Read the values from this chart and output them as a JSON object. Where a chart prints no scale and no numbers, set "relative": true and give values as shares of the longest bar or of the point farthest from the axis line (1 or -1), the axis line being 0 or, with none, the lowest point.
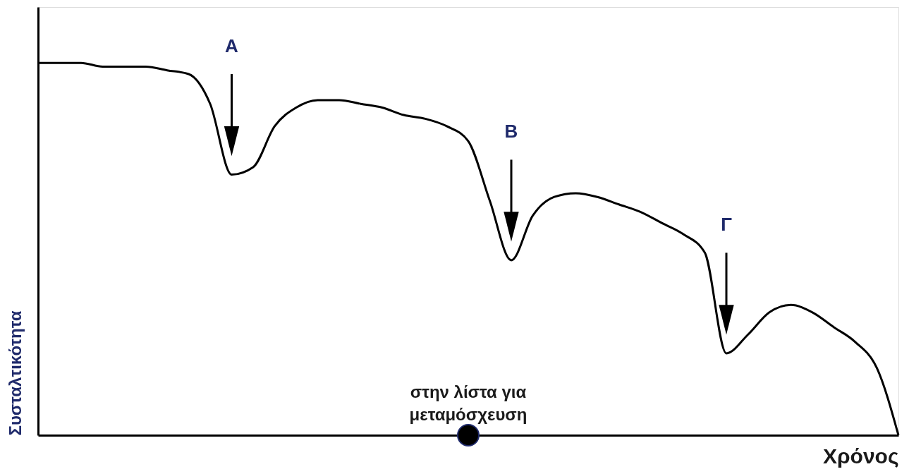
{
  "chart_data": {
    "type": "line",
    "relative": true,
    "xlabel": "Χρόνος",
    "ylabel": "Συσταλτικότητα",
    "categories": [
      null,
      null,
      null,
      null,
      null,
      null,
      null,
      null,
      null,
      null,
      null,
      null,
      null,
      null,
      null,
      null,
      null,
      null,
      null,
      null,
      null,
      null,
      null,
      null,
      null,
      null,
      null,
      null,
      null,
      null,
      null,
      null,
      null,
      null,
      null,
      null,
      null,
      null,
      null,
      null,
      null
    ],
    "series": [
      {
        "color": "#000000",
        "values": [
          1.0,
          1.0,
          1.0,
          0.99,
          0.99,
          0.99,
          0.98,
          0.97,
          0.89,
          0.7,
          0.72,
          0.83,
          0.88,
          0.9,
          0.9,
          0.89,
          0.88,
          0.86,
          0.85,
          0.83,
          0.79,
          0.63,
          0.47,
          0.59,
          0.64,
          0.65,
          0.64,
          0.62,
          0.6,
          0.57,
          0.54,
          0.49,
          0.22,
          0.27,
          0.33,
          0.35,
          0.33,
          0.29,
          0.25,
          0.18,
          0.0
        ]
      }
    ],
    "annotations": [
      "A",
      "B",
      "Γ",
      "στην λίστα για μεταμόσχευση"
    ],
    "grid": false,
    "marker": "none",
    "line_style": "solid",
    "tick_labels": false
  }
}
